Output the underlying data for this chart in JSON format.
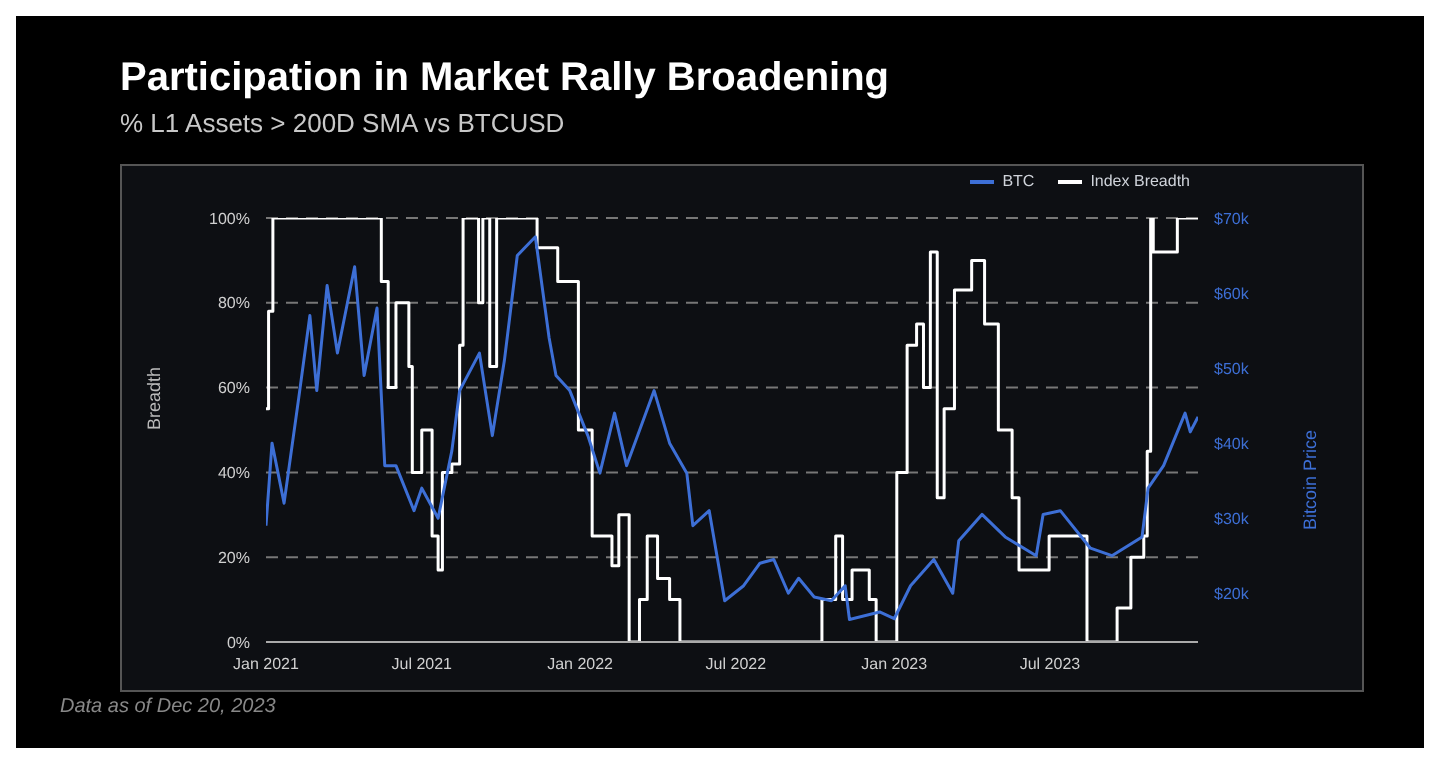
{
  "chart_data": {
    "type": "line",
    "title": "Participation in Market Rally Broadening",
    "subtitle": "% L1 Assets > 200D SMA vs BTCUSD",
    "ylabel": "Breadth",
    "y2label": "Bitcoin Price",
    "annotations": [
      "Data as of Dec 20, 2023"
    ],
    "legend": "top right",
    "grid": "y",
    "marker": "none",
    "line_style": "solid",
    "xlim": [
      "2021-01-01",
      "2023-12-20"
    ],
    "xticks": [
      {
        "value": "2021-01-01",
        "label": "Jan 2021"
      },
      {
        "value": "2021-07-01",
        "label": "Jul 2021"
      },
      {
        "value": "2022-01-01",
        "label": "Jan 2022"
      },
      {
        "value": "2022-07-01",
        "label": "Jul 2022"
      },
      {
        "value": "2023-01-01",
        "label": "Jan 2023"
      },
      {
        "value": "2023-07-01",
        "label": "Jul 2023"
      }
    ],
    "ylim": [
      0,
      100
    ],
    "yticks": [
      {
        "value": 0,
        "label": "0%"
      },
      {
        "value": 20,
        "label": "20%"
      },
      {
        "value": 40,
        "label": "40%"
      },
      {
        "value": 60,
        "label": "60%"
      },
      {
        "value": 80,
        "label": "80%"
      },
      {
        "value": 100,
        "label": "100%"
      }
    ],
    "y2lim": [
      13500,
      70000
    ],
    "y2ticks": [
      {
        "value": 20000,
        "label": "$20k"
      },
      {
        "value": 30000,
        "label": "$30k"
      },
      {
        "value": 40000,
        "label": "$40k"
      },
      {
        "value": 50000,
        "label": "$50k"
      },
      {
        "value": 60000,
        "label": "$60k"
      },
      {
        "value": 70000,
        "label": "$70k"
      }
    ],
    "series": [
      {
        "name": "BTC",
        "type": "line",
        "axis": "y2",
        "color": "#3d6fd6",
        "x": [
          "2021-01-01",
          "2021-01-08",
          "2021-01-22",
          "2021-02-08",
          "2021-02-21",
          "2021-03-01",
          "2021-03-13",
          "2021-03-25",
          "2021-04-14",
          "2021-04-25",
          "2021-05-10",
          "2021-05-19",
          "2021-06-01",
          "2021-06-22",
          "2021-07-01",
          "2021-07-20",
          "2021-08-05",
          "2021-08-14",
          "2021-09-06",
          "2021-09-21",
          "2021-10-05",
          "2021-10-20",
          "2021-11-10",
          "2021-11-26",
          "2021-12-04",
          "2021-12-20",
          "2022-01-10",
          "2022-01-24",
          "2022-02-10",
          "2022-02-24",
          "2022-03-28",
          "2022-04-15",
          "2022-05-05",
          "2022-05-12",
          "2022-05-31",
          "2022-06-18",
          "2022-07-10",
          "2022-07-29",
          "2022-08-14",
          "2022-08-31",
          "2022-09-12",
          "2022-09-30",
          "2022-10-20",
          "2022-11-05",
          "2022-11-10",
          "2022-12-15",
          "2023-01-01",
          "2023-01-20",
          "2023-02-16",
          "2023-03-10",
          "2023-03-17",
          "2023-04-13",
          "2023-05-10",
          "2023-06-15",
          "2023-06-23",
          "2023-07-13",
          "2023-08-17",
          "2023-09-11",
          "2023-10-16",
          "2023-10-23",
          "2023-11-10",
          "2023-12-05",
          "2023-12-11",
          "2023-12-20"
        ],
        "values": [
          29000,
          40000,
          32000,
          46000,
          57000,
          47000,
          61000,
          52000,
          63500,
          49000,
          58000,
          37000,
          37000,
          31000,
          34000,
          30000,
          39000,
          47000,
          52000,
          41000,
          51000,
          65000,
          67500,
          54000,
          49000,
          47000,
          41000,
          36000,
          44000,
          37000,
          47000,
          40000,
          36000,
          29000,
          31000,
          19000,
          21000,
          24000,
          24500,
          20000,
          22000,
          19500,
          19000,
          21000,
          16500,
          17500,
          16600,
          21000,
          24500,
          20000,
          27000,
          30500,
          27500,
          25000,
          30500,
          31000,
          26000,
          25000,
          27500,
          34000,
          37000,
          44000,
          41500,
          43500
        ]
      },
      {
        "name": "Index Breadth",
        "type": "step",
        "color": "#ffffff",
        "x": [
          "2021-01-01",
          "2021-01-04",
          "2021-01-09",
          "2021-05-15",
          "2021-05-23",
          "2021-06-01",
          "2021-06-16",
          "2021-06-20",
          "2021-07-01",
          "2021-07-13",
          "2021-07-20",
          "2021-07-25",
          "2021-08-05",
          "2021-08-14",
          "2021-08-18",
          "2021-09-05",
          "2021-09-10",
          "2021-09-18",
          "2021-09-26",
          "2021-11-12",
          "2021-12-06",
          "2021-12-30",
          "2022-01-15",
          "2022-02-07",
          "2022-02-15",
          "2022-02-27",
          "2022-03-11",
          "2022-03-20",
          "2022-04-01",
          "2022-04-15",
          "2022-04-27",
          "2022-10-09",
          "2022-10-25",
          "2022-11-02",
          "2022-11-13",
          "2022-12-03",
          "2022-12-11",
          "2023-01-04",
          "2023-01-16",
          "2023-01-27",
          "2023-02-04",
          "2023-02-12",
          "2023-02-20",
          "2023-02-28",
          "2023-03-12",
          "2023-04-01",
          "2023-04-16",
          "2023-05-02",
          "2023-05-18",
          "2023-05-26",
          "2023-06-30",
          "2023-08-13",
          "2023-09-17",
          "2023-10-03",
          "2023-10-18",
          "2023-10-22",
          "2023-10-26",
          "2023-10-29",
          "2023-11-26",
          "2023-12-20"
        ],
        "values": [
          55,
          78,
          100,
          85,
          60,
          80,
          65,
          40,
          50,
          25,
          17,
          40,
          42,
          70,
          100,
          80,
          100,
          65,
          100,
          93,
          85,
          50,
          25,
          18,
          30,
          0,
          10,
          25,
          15,
          10,
          0,
          10,
          25,
          10,
          17,
          10,
          0,
          40,
          70,
          75,
          60,
          92,
          34,
          55,
          83,
          90,
          75,
          50,
          34,
          17,
          25,
          0,
          8,
          20,
          25,
          45,
          100,
          92,
          100,
          100
        ]
      }
    ]
  }
}
